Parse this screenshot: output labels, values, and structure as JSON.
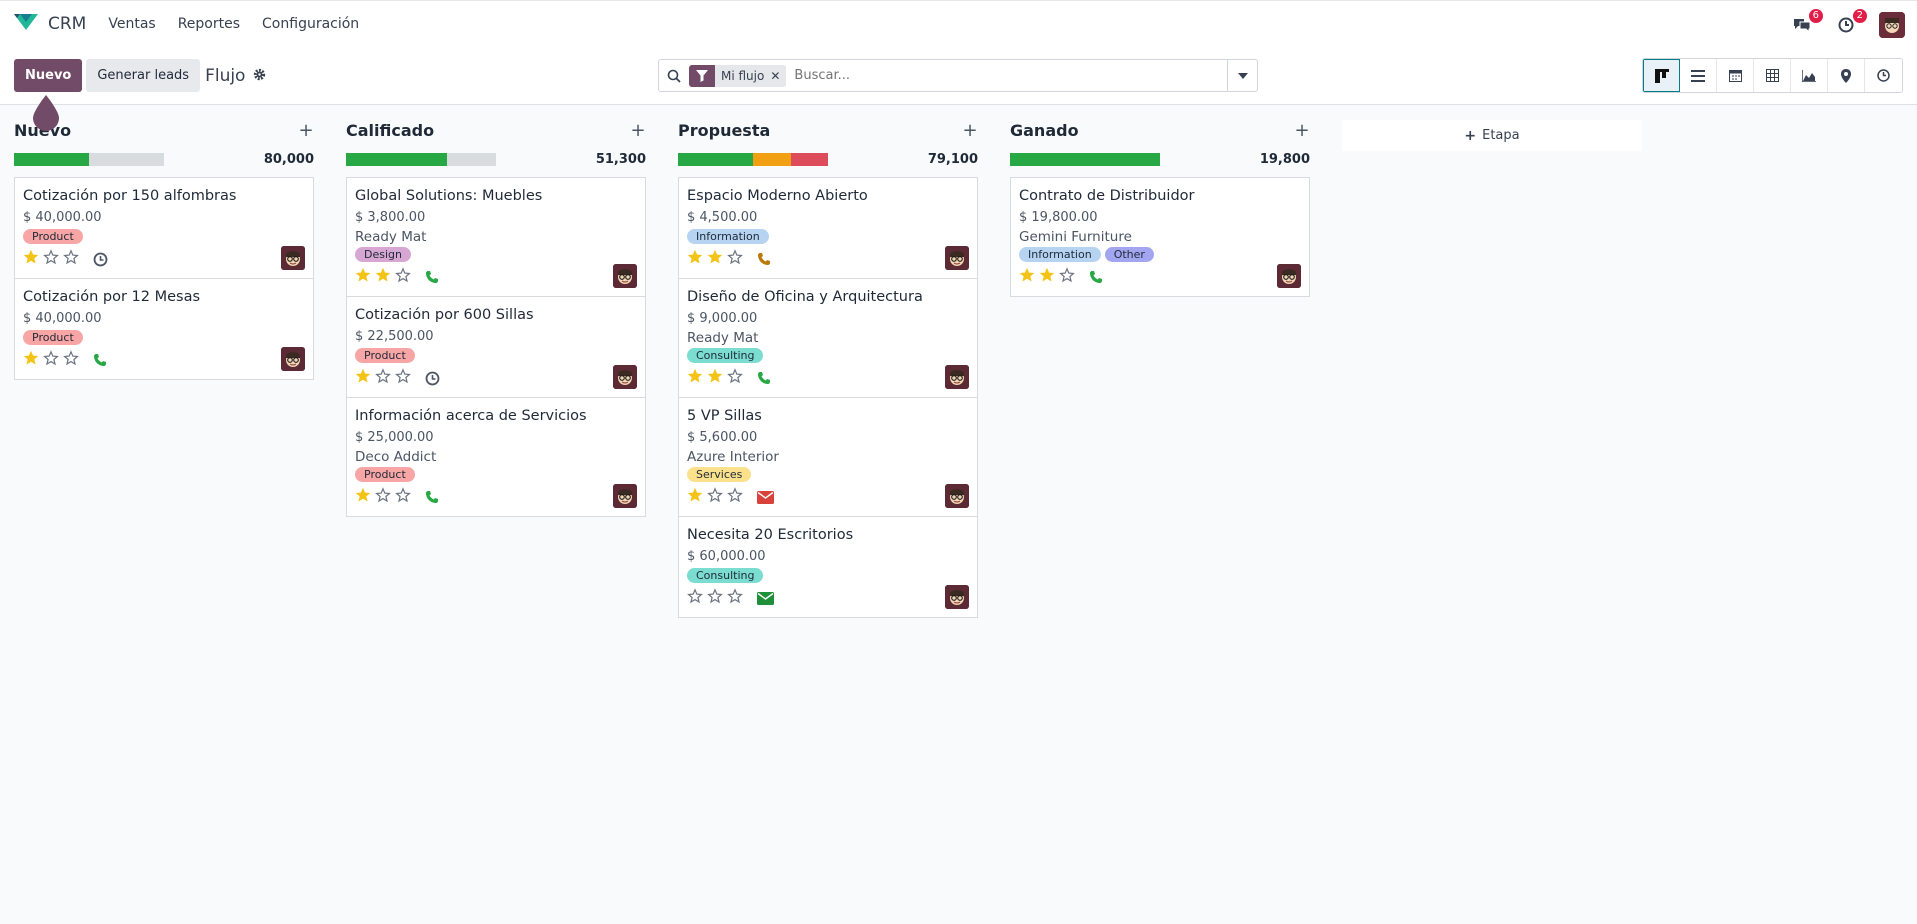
{
  "app": {
    "name": "CRM"
  },
  "menu": [
    "Ventas",
    "Reportes",
    "Configuración"
  ],
  "systray": {
    "messages_count": "6",
    "activities_count": "2"
  },
  "controls": {
    "new_label": "Nuevo",
    "generate_label": "Generar leads",
    "breadcrumb": "Flujo"
  },
  "search": {
    "facet": "Mi flujo",
    "placeholder": "Buscar..."
  },
  "views": [
    "kanban-icon",
    "list-icon",
    "calendar-icon",
    "pivot-icon",
    "graph-icon",
    "map-icon",
    "activity-icon"
  ],
  "add_stage_label": "Etapa",
  "columns": [
    {
      "title": "Nuevo",
      "total": "80,000",
      "progress": [
        {
          "color": "#28a745",
          "fraction": 0.5
        }
      ],
      "cards": [
        {
          "title": "Cotización por 150 alfombras",
          "amount": "$ 40,000.00",
          "partner": "",
          "tags": [
            {
              "label": "Product",
              "color": "#f8a5a5"
            }
          ],
          "stars": 1,
          "activity": "clock"
        },
        {
          "title": "Cotización por 12 Mesas",
          "amount": "$ 40,000.00",
          "partner": "",
          "tags": [
            {
              "label": "Product",
              "color": "#f8a5a5"
            }
          ],
          "stars": 1,
          "activity": "phone"
        }
      ]
    },
    {
      "title": "Calificado",
      "total": "51,300",
      "progress": [
        {
          "color": "#28a745",
          "fraction": 0.67
        }
      ],
      "cards": [
        {
          "title": "Global Solutions: Muebles",
          "amount": "$ 3,800.00",
          "partner": "Ready Mat",
          "tags": [
            {
              "label": "Design",
              "color": "#d7a6d3"
            }
          ],
          "stars": 2,
          "activity": "phone"
        },
        {
          "title": "Cotización por 600 Sillas",
          "amount": "$ 22,500.00",
          "partner": "",
          "tags": [
            {
              "label": "Product",
              "color": "#f8a5a5"
            }
          ],
          "stars": 1,
          "activity": "clock"
        },
        {
          "title": "Información acerca de Servicios",
          "amount": "$ 25,000.00",
          "partner": "Deco Addict",
          "tags": [
            {
              "label": "Product",
              "color": "#f8a5a5"
            }
          ],
          "stars": 1,
          "activity": "phone"
        }
      ]
    },
    {
      "title": "Propuesta",
      "total": "79,100",
      "progress": [
        {
          "color": "#28a745",
          "fraction": 0.5
        },
        {
          "color": "#f0a012",
          "fraction": 0.25
        },
        {
          "color": "#dc4c5a",
          "fraction": 0.25
        }
      ],
      "cards": [
        {
          "title": "Espacio Moderno Abierto",
          "amount": "$ 4,500.00",
          "partner": "",
          "tags": [
            {
              "label": "Information",
              "color": "#b6d4f2"
            }
          ],
          "stars": 2,
          "activity": "phone-warning"
        },
        {
          "title": "Diseño de Oficina y Arquitectura",
          "amount": "$ 9,000.00",
          "partner": "Ready Mat",
          "tags": [
            {
              "label": "Consulting",
              "color": "#7bdcd0"
            }
          ],
          "stars": 2,
          "activity": "phone"
        },
        {
          "title": "5 VP Sillas",
          "amount": "$ 5,600.00",
          "partner": "Azure Interior",
          "tags": [
            {
              "label": "Services",
              "color": "#fbe18c"
            }
          ],
          "stars": 1,
          "activity": "mail-danger"
        },
        {
          "title": "Necesita 20 Escritorios",
          "amount": "$ 60,000.00",
          "partner": "",
          "tags": [
            {
              "label": "Consulting",
              "color": "#7bdcd0"
            }
          ],
          "stars": 0,
          "activity": "mail"
        }
      ]
    },
    {
      "title": "Ganado",
      "total": "19,800",
      "progress": [
        {
          "color": "#28a745",
          "fraction": 1.0
        }
      ],
      "cards": [
        {
          "title": "Contrato de Distribuidor",
          "amount": "$ 19,800.00",
          "partner": "Gemini Furniture",
          "tags": [
            {
              "label": "Information",
              "color": "#b6d4f2"
            },
            {
              "label": "Other",
              "color": "#a2a6f0"
            }
          ],
          "stars": 2,
          "activity": "phone"
        }
      ]
    }
  ]
}
